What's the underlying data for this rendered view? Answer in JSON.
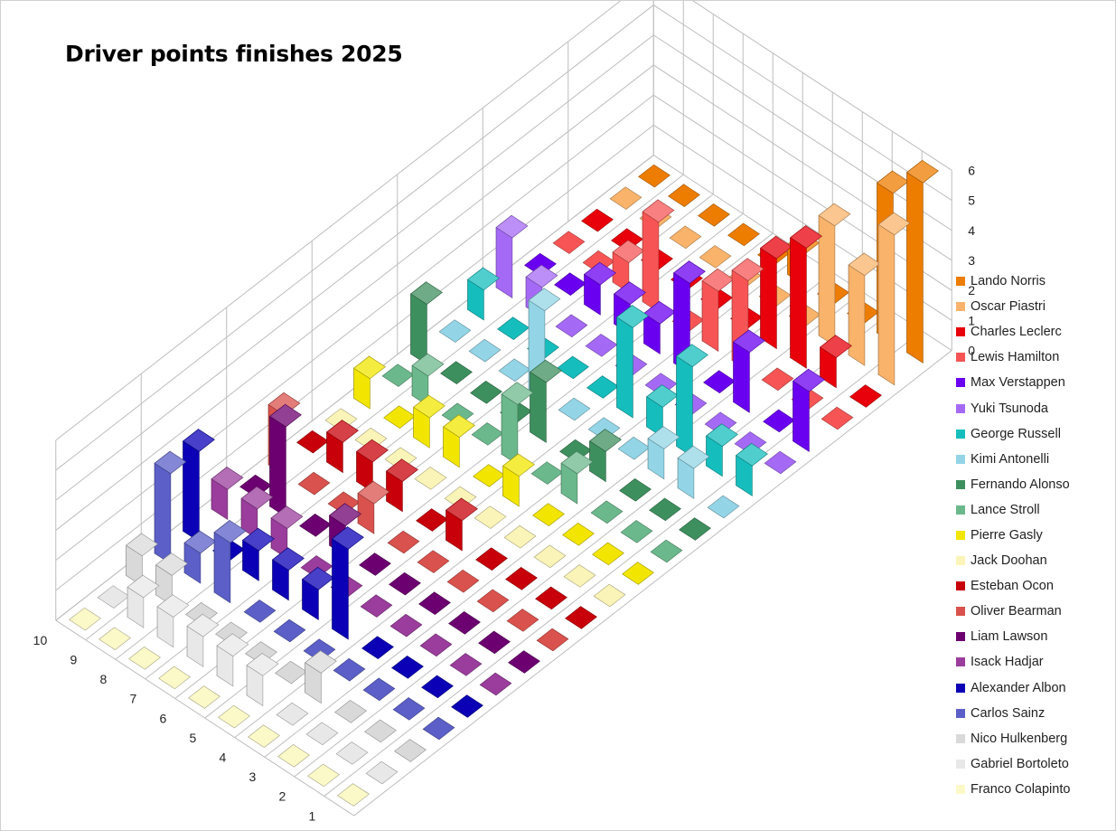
{
  "chart_data": {
    "type": "bar3d",
    "title": "Driver points finishes 2025",
    "xlabel": "",
    "ylabel": "",
    "zlabel": "",
    "z_ticks": [
      "0",
      "1",
      "2",
      "3",
      "4",
      "5",
      "6"
    ],
    "position_ticks": [
      "1",
      "2",
      "3",
      "4",
      "5",
      "6",
      "7",
      "8",
      "9",
      "10"
    ],
    "zlim": [
      0,
      6
    ],
    "grid": true,
    "legend_position": "right",
    "positions": [
      1,
      2,
      3,
      4,
      5,
      6,
      7,
      8,
      9,
      10
    ],
    "series": [
      {
        "name": "Lando Norris",
        "color": "#ED7D00",
        "values": [
          6,
          5,
          0,
          0,
          1,
          0,
          0,
          0,
          0,
          0
        ]
      },
      {
        "name": "Oscar Piastri",
        "color": "#F9B36B",
        "values": [
          5,
          3,
          4,
          0,
          0,
          0,
          0,
          0,
          0,
          0
        ]
      },
      {
        "name": "Charles Leclerc",
        "color": "#E8000B",
        "values": [
          0,
          1,
          4,
          3,
          0,
          0,
          0,
          0,
          0,
          0
        ]
      },
      {
        "name": "Lewis Hamilton",
        "color": "#F75555",
        "values": [
          0,
          0,
          0,
          3,
          2,
          0,
          3,
          1,
          0,
          0
        ]
      },
      {
        "name": "Max Verstappen",
        "color": "#6A00F0",
        "values": [
          2,
          0,
          2,
          0,
          3,
          1,
          1,
          1,
          0,
          0
        ]
      },
      {
        "name": "Yuki Tsunoda",
        "color": "#A56AF5",
        "values": [
          0,
          0,
          0,
          0,
          0,
          0,
          0,
          0,
          1,
          2
        ]
      },
      {
        "name": "George Russell",
        "color": "#16BDBD",
        "values": [
          1,
          1,
          3,
          1,
          3,
          0,
          0,
          0,
          0,
          1
        ]
      },
      {
        "name": "Kimi Antonelli",
        "color": "#93D5E6",
        "values": [
          0,
          1,
          1,
          0,
          0,
          0,
          3,
          0,
          0,
          0
        ]
      },
      {
        "name": "Fernando Alonso",
        "color": "#3E8F5E",
        "values": [
          0,
          0,
          0,
          1,
          0,
          2,
          0,
          0,
          0,
          2
        ]
      },
      {
        "name": "Lance Stroll",
        "color": "#6BB88C",
        "values": [
          0,
          0,
          0,
          1,
          0,
          2,
          0,
          0,
          1,
          0
        ]
      },
      {
        "name": "Pierre Gasly",
        "color": "#F2E600",
        "values": [
          0,
          0,
          0,
          0,
          1,
          0,
          1,
          1,
          0,
          1
        ]
      },
      {
        "name": "Jack Doohan",
        "color": "#FBF4B8",
        "values": [
          0,
          0,
          0,
          0,
          0,
          0,
          0,
          0,
          0,
          0
        ]
      },
      {
        "name": "Esteban Ocon",
        "color": "#C8000A",
        "values": [
          0,
          0,
          0,
          0,
          1,
          0,
          1,
          1,
          1,
          0
        ]
      },
      {
        "name": "Oliver Bearman",
        "color": "#D9524D",
        "values": [
          0,
          0,
          0,
          0,
          0,
          0,
          1,
          0,
          0,
          2
        ]
      },
      {
        "name": "Liam Lawson",
        "color": "#6C0070",
        "values": [
          0,
          0,
          0,
          0,
          0,
          0,
          1,
          0,
          3,
          0
        ]
      },
      {
        "name": "Isack Hadjar",
        "color": "#9A3D9C",
        "values": [
          0,
          0,
          0,
          0,
          0,
          0,
          0,
          1,
          1,
          1
        ]
      },
      {
        "name": "Alexander Albon",
        "color": "#0B00B5",
        "values": [
          0,
          0,
          0,
          0,
          3,
          1,
          1,
          1,
          0,
          3
        ]
      },
      {
        "name": "Carlos Sainz",
        "color": "#5B5FC7",
        "values": [
          0,
          0,
          0,
          0,
          0,
          0,
          0,
          2,
          1,
          3
        ]
      },
      {
        "name": "Nico Hulkenberg",
        "color": "#D9D9D9",
        "values": [
          0,
          0,
          0,
          1,
          0,
          0,
          0,
          0,
          1,
          1
        ]
      },
      {
        "name": "Gabriel Bortoleto",
        "color": "#E8E8E8",
        "values": [
          0,
          0,
          0,
          0,
          1,
          1,
          1,
          1,
          1,
          0
        ]
      },
      {
        "name": "Franco Colapinto",
        "color": "#FCF9C9",
        "values": [
          0,
          0,
          0,
          0,
          0,
          0,
          0,
          0,
          0,
          0
        ]
      }
    ]
  }
}
